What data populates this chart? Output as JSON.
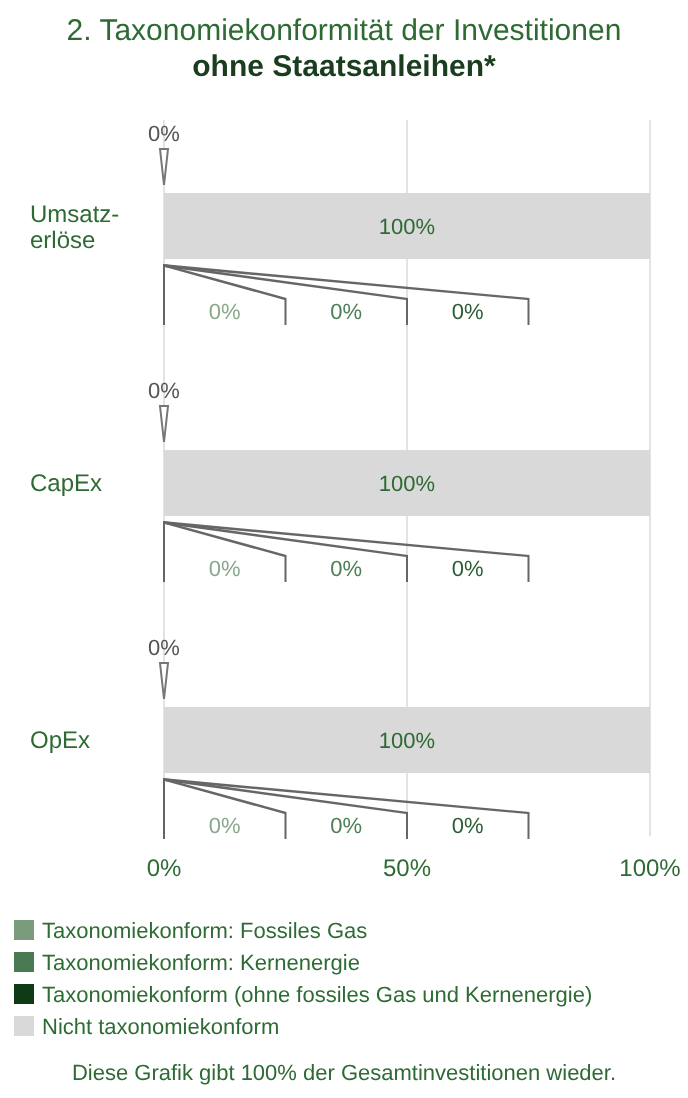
{
  "chart_data": {
    "type": "bar",
    "orientation": "horizontal",
    "stacked": true,
    "title": "2. Taxonomiekonformität der Investitionen",
    "subtitle": "ohne Staatsanleihen*",
    "categories": [
      "Umsatz-erlöse",
      "CapEx",
      "OpEx"
    ],
    "series": [
      {
        "name": "Taxonomiekonform: Fossiles Gas",
        "color": "#7a9c7c",
        "values": [
          0,
          0,
          0
        ]
      },
      {
        "name": "Taxonomiekonform: Kernenergie",
        "color": "#4a7a52",
        "values": [
          0,
          0,
          0
        ]
      },
      {
        "name": "Taxonomiekonform (ohne fossiles Gas und Kernenergie)",
        "color": "#0f3a16",
        "values": [
          0,
          0,
          0
        ]
      },
      {
        "name": "Nicht taxonomiekonform",
        "color": "#d9d9d9",
        "values": [
          100,
          100,
          100
        ],
        "value_labels": [
          "100%",
          "100%",
          "100%"
        ]
      }
    ],
    "xlim": [
      0,
      100
    ],
    "xticks": [
      {
        "value": 0,
        "label": "0%"
      },
      {
        "value": 50,
        "label": "50%"
      },
      {
        "value": 100,
        "label": "100%"
      }
    ],
    "grid": "x",
    "legend": "bottom",
    "annotations": [
      "0%",
      "0%",
      "0%",
      "0%",
      "0%",
      "0%",
      "0%",
      "0%",
      "0%",
      "0%",
      "0%",
      "0%",
      "Diese Grafik gibt 100% der Gesamtinvestitionen wieder."
    ]
  }
}
